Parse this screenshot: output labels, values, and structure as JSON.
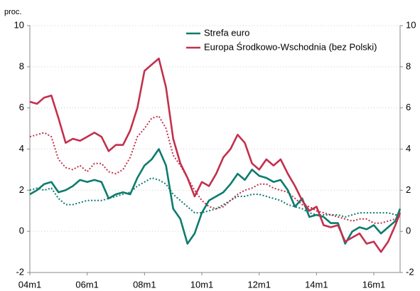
{
  "chart_data": {
    "type": "line",
    "y_unit_label": "proc.",
    "x": [
      0,
      3,
      6,
      9,
      12,
      15,
      18,
      21,
      24,
      27,
      30,
      33,
      36,
      39,
      42,
      45,
      48,
      51,
      54,
      57,
      60,
      63,
      66,
      69,
      72,
      75,
      78,
      81,
      84,
      87,
      90,
      93,
      96,
      99,
      102,
      105,
      108,
      111,
      114,
      117,
      120,
      123,
      126,
      129,
      132,
      135,
      138,
      141,
      144,
      147,
      150,
      153,
      155
    ],
    "xlim": [
      0,
      155
    ],
    "xticks": [
      {
        "value": 0,
        "label": "04m1"
      },
      {
        "value": 24,
        "label": "06m1"
      },
      {
        "value": 48,
        "label": "08m1"
      },
      {
        "value": 72,
        "label": "10m1"
      },
      {
        "value": 96,
        "label": "12m1"
      },
      {
        "value": 120,
        "label": "14m1"
      },
      {
        "value": 144,
        "label": "16m1"
      }
    ],
    "ylim": [
      -2,
      10
    ],
    "yticks": [
      -2,
      0,
      2,
      4,
      6,
      8,
      10
    ],
    "y2lim": [
      -2,
      10
    ],
    "y2ticks": [
      -2,
      0,
      2,
      4,
      6,
      8,
      10
    ],
    "grid": true,
    "series": [
      {
        "name": "Strefa euro",
        "color": "#0d7c6f",
        "dash": false,
        "values": [
          1.8,
          2.0,
          2.3,
          2.4,
          1.9,
          2.0,
          2.2,
          2.5,
          2.4,
          2.5,
          2.4,
          1.6,
          1.8,
          1.9,
          1.8,
          2.6,
          3.2,
          3.5,
          4.0,
          3.2,
          1.1,
          0.6,
          -0.6,
          -0.1,
          0.9,
          1.5,
          1.7,
          1.9,
          2.3,
          2.8,
          2.5,
          3.0,
          2.7,
          2.6,
          2.4,
          2.5,
          2.0,
          1.2,
          1.6,
          0.7,
          0.8,
          0.7,
          0.4,
          0.4,
          -0.6,
          0.0,
          0.2,
          0.1,
          0.3,
          -0.1,
          0.2,
          0.5,
          1.1
        ]
      },
      {
        "name": "Europa Środkowo-Wschodnia (bez Polski)",
        "color": "#c3304c",
        "dash": false,
        "values": [
          6.3,
          6.2,
          6.5,
          6.6,
          5.5,
          4.3,
          4.5,
          4.4,
          4.6,
          4.8,
          4.6,
          3.9,
          4.2,
          4.2,
          4.9,
          6.0,
          7.8,
          8.1,
          8.4,
          7.0,
          4.5,
          3.3,
          2.6,
          1.7,
          2.4,
          2.2,
          2.8,
          3.6,
          4.0,
          4.7,
          4.3,
          3.3,
          3.0,
          3.5,
          3.2,
          3.5,
          2.8,
          2.2,
          1.5,
          1.0,
          1.2,
          0.3,
          0.2,
          0.3,
          -0.5,
          -0.3,
          -0.1,
          -0.6,
          -0.5,
          -1.0,
          -0.5,
          0.3,
          0.9
        ]
      },
      {
        "color": "#0d7c6f",
        "dash": true,
        "values": [
          2.0,
          2.1,
          2.0,
          2.1,
          1.6,
          1.3,
          1.3,
          1.4,
          1.5,
          1.5,
          1.5,
          1.6,
          1.7,
          1.8,
          1.9,
          2.2,
          2.4,
          2.6,
          2.5,
          2.3,
          1.8,
          1.5,
          1.2,
          0.9,
          0.9,
          1.0,
          1.1,
          1.3,
          1.5,
          1.7,
          1.7,
          1.8,
          1.8,
          1.7,
          1.6,
          1.5,
          1.3,
          1.2,
          1.1,
          0.9,
          0.8,
          0.8,
          0.8,
          0.8,
          0.7,
          0.8,
          0.9,
          0.9,
          0.9,
          0.9,
          0.9,
          0.8,
          0.8
        ]
      },
      {
        "color": "#c3304c",
        "dash": true,
        "values": [
          4.6,
          4.7,
          4.8,
          4.6,
          3.5,
          3.1,
          3.0,
          3.2,
          2.9,
          3.3,
          3.3,
          2.9,
          2.8,
          3.0,
          3.6,
          4.6,
          5.0,
          5.5,
          5.6,
          5.0,
          3.7,
          3.2,
          2.6,
          2.0,
          1.5,
          1.2,
          1.1,
          1.2,
          1.5,
          1.8,
          2.0,
          2.1,
          2.3,
          2.3,
          2.1,
          2.0,
          1.9,
          1.6,
          1.3,
          1.2,
          1.0,
          0.9,
          0.8,
          0.7,
          0.6,
          0.5,
          0.6,
          0.6,
          0.4,
          0.4,
          0.5,
          0.6,
          0.8
        ]
      }
    ]
  }
}
